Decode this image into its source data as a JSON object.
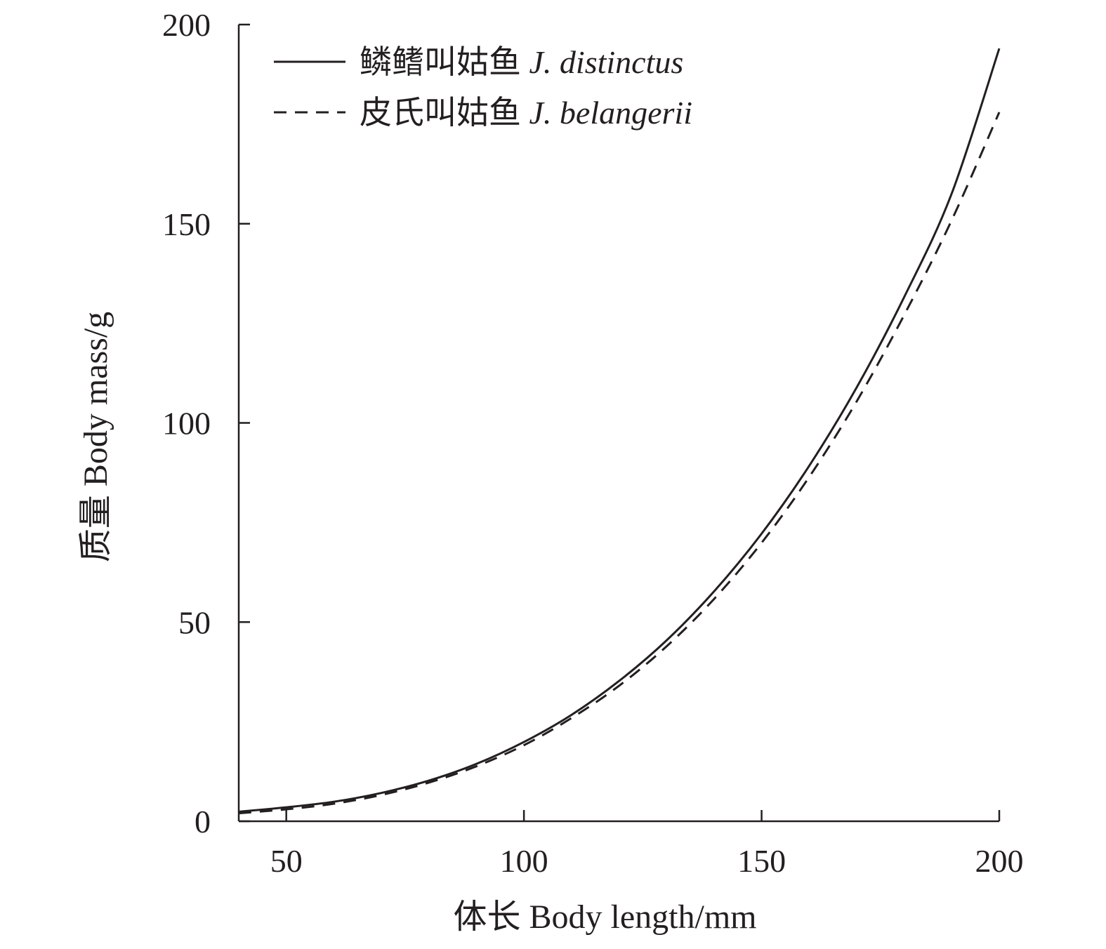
{
  "chart_data": {
    "type": "line",
    "xlabel": "体长 Body length/mm",
    "ylabel": "质量 Body mass/g",
    "xlim": [
      40,
      200
    ],
    "ylim": [
      0,
      200
    ],
    "x_ticks": [
      50,
      100,
      150,
      200
    ],
    "y_ticks": [
      0,
      50,
      100,
      150,
      200
    ],
    "grid": false,
    "legend_position": "top-left",
    "series": [
      {
        "name": "鳞鳍叫姑鱼 J. distinctus",
        "name_cn": "鳞鳍叫姑鱼",
        "name_latin": "J. distinctus",
        "style": "solid",
        "color": "#231f20",
        "x": [
          40,
          50,
          60,
          70,
          80,
          90,
          100,
          110,
          120,
          130,
          140,
          150,
          160,
          170,
          180,
          190,
          200
        ],
        "y": [
          2.4,
          3.5,
          4.9,
          7.1,
          10.2,
          14.4,
          19.9,
          26.7,
          35.2,
          45.4,
          57.7,
          72.2,
          89.2,
          108.9,
          131.6,
          157.6,
          194.0
        ]
      },
      {
        "name": "皮氏叫姑鱼 J. belangerii",
        "name_cn": "皮氏叫姑鱼",
        "name_latin": "J. belangerii",
        "style": "dashed",
        "color": "#231f20",
        "x": [
          40,
          50,
          60,
          70,
          80,
          90,
          100,
          110,
          120,
          130,
          140,
          150,
          160,
          170,
          180,
          190,
          200
        ],
        "y": [
          2.0,
          3.0,
          4.4,
          6.6,
          9.7,
          13.8,
          19.1,
          25.9,
          34.0,
          43.9,
          55.8,
          69.9,
          86.4,
          105.4,
          127.1,
          150.9,
          178.0
        ]
      }
    ]
  }
}
